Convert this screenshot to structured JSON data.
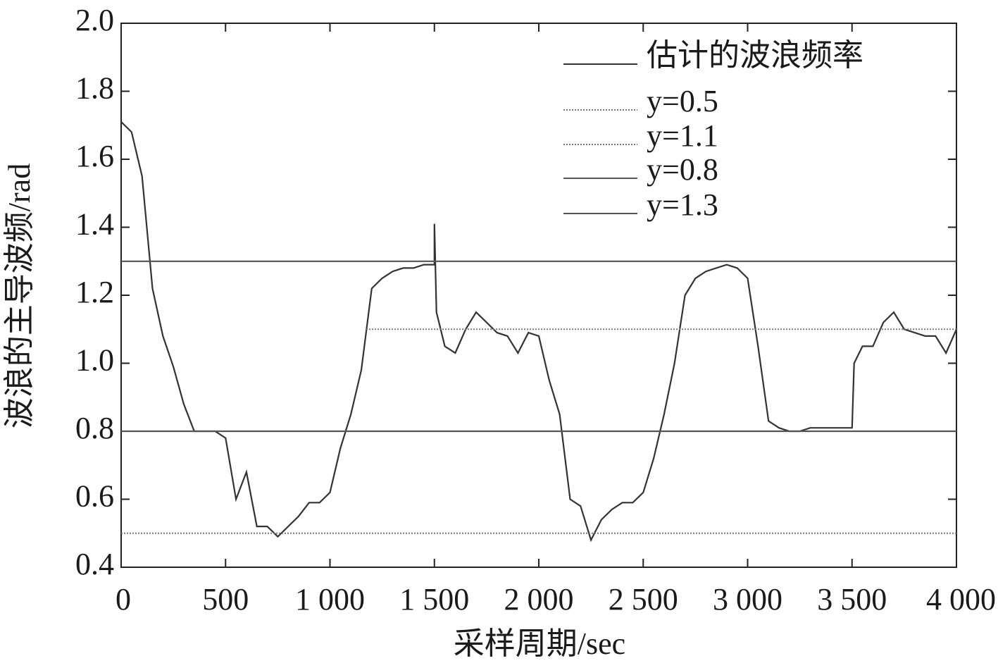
{
  "chart_data": {
    "type": "line",
    "xlabel": "采样周期/sec",
    "ylabel": "波浪的主导波频/rad",
    "xlim": [
      0,
      4000
    ],
    "ylim": [
      0.4,
      2.0
    ],
    "xticks": [
      0,
      500,
      {
        "value": 1000,
        "label": "1 000"
      },
      {
        "value": 1500,
        "label": "1 500"
      },
      {
        "value": 2000,
        "label": "2 000"
      },
      {
        "value": 2500,
        "label": "2 500"
      },
      {
        "value": 3000,
        "label": "3 000"
      },
      {
        "value": 3500,
        "label": "3 500"
      },
      {
        "value": 4000,
        "label": "4 000"
      }
    ],
    "yticks": [
      0.4,
      0.6,
      0.8,
      {
        "value": 1,
        "label": "1.0"
      },
      1.2,
      1.4,
      1.6,
      1.8,
      {
        "value": 2,
        "label": "2.0"
      }
    ],
    "grid": false,
    "legend": "upper right",
    "series": [
      {
        "name": "估计的波浪频率",
        "color": "#333333",
        "style": "solid",
        "x": [
          0,
          50,
          100,
          150,
          200,
          250,
          300,
          350,
          400,
          450,
          500,
          550,
          600,
          650,
          700,
          750,
          800,
          850,
          900,
          950,
          1000,
          1050,
          1100,
          1150,
          1200,
          1250,
          1300,
          1350,
          1400,
          1450,
          1500,
          1500,
          1510,
          1550,
          1600,
          1650,
          1700,
          1750,
          1800,
          1850,
          1900,
          1950,
          2000,
          2050,
          2100,
          2150,
          2200,
          2250,
          2300,
          2350,
          2400,
          2450,
          2500,
          2550,
          2600,
          2650,
          2700,
          2750,
          2800,
          2850,
          2900,
          2950,
          3000,
          3050,
          3100,
          3150,
          3200,
          3250,
          3300,
          3350,
          3400,
          3450,
          3500,
          3510,
          3550,
          3600,
          3650,
          3700,
          3750,
          3800,
          3850,
          3900,
          3950,
          4000
        ],
        "values": [
          1.71,
          1.68,
          1.55,
          1.22,
          1.08,
          0.99,
          0.88,
          0.8,
          0.8,
          0.8,
          0.78,
          0.6,
          0.68,
          0.52,
          0.52,
          0.49,
          0.52,
          0.55,
          0.59,
          0.59,
          0.62,
          0.75,
          0.85,
          0.98,
          1.22,
          1.25,
          1.27,
          1.28,
          1.28,
          1.29,
          1.29,
          1.41,
          1.15,
          1.05,
          1.03,
          1.1,
          1.15,
          1.12,
          1.09,
          1.08,
          1.03,
          1.09,
          1.08,
          0.95,
          0.85,
          0.6,
          0.58,
          0.48,
          0.54,
          0.57,
          0.59,
          0.59,
          0.62,
          0.72,
          0.85,
          1.0,
          1.2,
          1.25,
          1.27,
          1.28,
          1.29,
          1.28,
          1.25,
          1.05,
          0.83,
          0.81,
          0.8,
          0.8,
          0.81,
          0.81,
          0.81,
          0.81,
          0.81,
          1.0,
          1.05,
          1.05,
          1.12,
          1.15,
          1.1,
          1.09,
          1.08,
          1.08,
          1.03,
          1.1
        ]
      },
      {
        "name": "y=0.5",
        "color": "#777777",
        "style": "dotted",
        "x": [
          0,
          4000
        ],
        "values": [
          0.5,
          0.5
        ]
      },
      {
        "name": "y=1.1",
        "color": "#777777",
        "style": "dotted",
        "x": [
          1174,
          4000
        ],
        "values": [
          1.1,
          1.1
        ]
      },
      {
        "name": "y=0.8",
        "color": "#555555",
        "style": "solid",
        "x": [
          0,
          4000
        ],
        "values": [
          0.8,
          0.8
        ]
      },
      {
        "name": "y=1.3",
        "color": "#555555",
        "style": "solid",
        "x": [
          0,
          4000
        ],
        "values": [
          1.3,
          1.3
        ]
      }
    ]
  }
}
